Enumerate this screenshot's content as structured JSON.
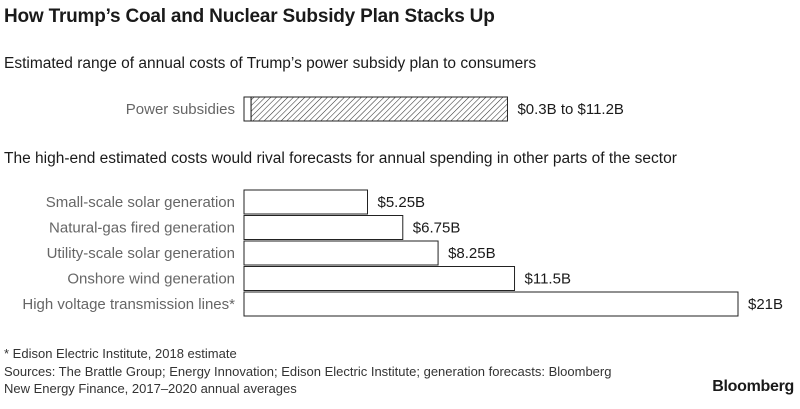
{
  "title": "How Trump’s Coal and Nuclear Subsidy Plan Stacks Up",
  "subtitle_1": "Estimated range of annual costs of Trump’s power subsidy plan to consumers",
  "subtitle_2": "The high-end estimated costs would rival forecasts for annual spending in other parts of the sector",
  "footnote": "* Edison Electric Institute, 2018 estimate",
  "sources": "Sources: The Brattle Group; Energy Innovation; Edison Electric Institute; generation forecasts: Bloomberg New Energy Finance, 2017–2020 annual averages",
  "sources_line1": "Sources: The Brattle Group; Energy Innovation; Edison Electric Institute; generation forecasts: Bloomberg",
  "sources_line2": "New Energy Finance, 2017–2020 annual averages",
  "logo": "Bloomberg",
  "chart_data": [
    {
      "type": "bar",
      "orientation": "horizontal",
      "title": "Estimated range of annual costs of Trump’s power subsidy plan to consumers",
      "categories": [
        "Power subsidies"
      ],
      "range_low": [
        0.3
      ],
      "range_high": [
        11.2
      ],
      "labels": [
        "$0.3B to $11.2B"
      ],
      "unit": "$B"
    },
    {
      "type": "bar",
      "orientation": "horizontal",
      "title": "The high-end estimated costs would rival forecasts for annual spending in other parts of the sector",
      "categories": [
        "Small-scale solar generation",
        "Natural-gas fired generation",
        "Utility-scale solar generation",
        "Onshore wind generation",
        "High voltage transmission lines*"
      ],
      "values": [
        5.25,
        6.75,
        8.25,
        11.5,
        21
      ],
      "labels": [
        "$5.25B",
        "$6.75B",
        "$8.25B",
        "$11.5B",
        "$21B"
      ],
      "unit": "$B",
      "xlim": [
        0,
        21
      ]
    }
  ]
}
